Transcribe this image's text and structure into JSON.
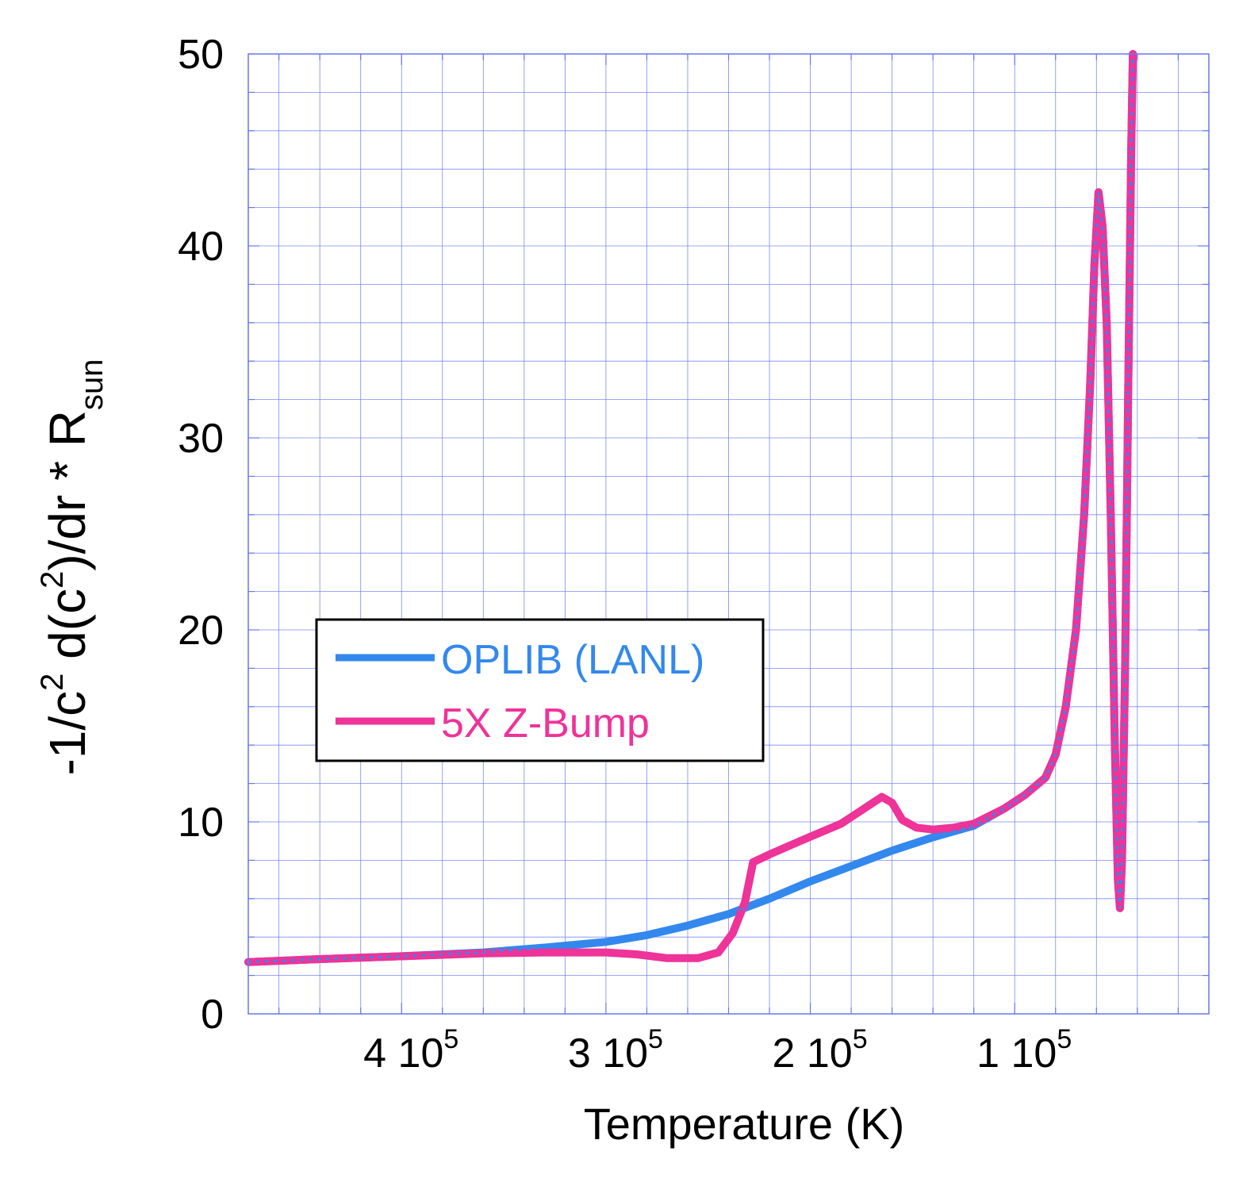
{
  "colors": {
    "oplib": "#3388ee",
    "zbump": "#ee3399",
    "grid": "#6677ee",
    "text": "#000000",
    "legend_border": "#000000"
  },
  "chart_data": {
    "type": "line",
    "title": "",
    "xlabel": "Temperature (K)",
    "ylabel_main": "-1/c",
    "ylabel_sup1": "2",
    "ylabel_mid": " d(c",
    "ylabel_sup2": "2",
    "ylabel_end": ")/dr * R",
    "ylabel_sub": "sun",
    "x_reversed": true,
    "xlim": [
      475000,
      5000
    ],
    "ylim": [
      0,
      50
    ],
    "x_ticks": [
      {
        "value": 400000,
        "mantissa": "4 10",
        "exp": "5"
      },
      {
        "value": 300000,
        "mantissa": "3 10",
        "exp": "5"
      },
      {
        "value": 200000,
        "mantissa": "2 10",
        "exp": "5"
      },
      {
        "value": 100000,
        "mantissa": "1 10",
        "exp": "5"
      }
    ],
    "x_minor_step": 20000,
    "y_ticks": [
      {
        "value": 0,
        "label": "0"
      },
      {
        "value": 10,
        "label": "10"
      },
      {
        "value": 20,
        "label": "20"
      },
      {
        "value": 30,
        "label": "30"
      },
      {
        "value": 40,
        "label": "40"
      },
      {
        "value": 50,
        "label": "50"
      }
    ],
    "y_grid_step": 2,
    "grid": true,
    "legend": {
      "placement": "center-left",
      "entries": [
        {
          "label": "OPLIB (LANL)",
          "series": 0
        },
        {
          "label": "5X Z-Bump",
          "series": 1
        }
      ]
    },
    "series": [
      {
        "name": "OPLIB (LANL)",
        "color_key": "oplib",
        "points": [
          [
            475000,
            2.7
          ],
          [
            440000,
            2.85
          ],
          [
            400000,
            3.0
          ],
          [
            360000,
            3.2
          ],
          [
            330000,
            3.45
          ],
          [
            300000,
            3.75
          ],
          [
            280000,
            4.1
          ],
          [
            260000,
            4.6
          ],
          [
            240000,
            5.2
          ],
          [
            220000,
            6.0
          ],
          [
            200000,
            6.9
          ],
          [
            180000,
            7.7
          ],
          [
            160000,
            8.5
          ],
          [
            140000,
            9.2
          ],
          [
            120000,
            9.8
          ],
          [
            105000,
            10.7
          ],
          [
            95000,
            11.4
          ],
          [
            85000,
            12.3
          ],
          [
            80000,
            13.5
          ],
          [
            75000,
            16.0
          ],
          [
            70000,
            20.0
          ],
          [
            66000,
            26.0
          ],
          [
            63000,
            33.0
          ],
          [
            61000,
            39.0
          ],
          [
            59000,
            42.8
          ],
          [
            57000,
            41.0
          ],
          [
            55000,
            36.0
          ],
          [
            53000,
            26.0
          ],
          [
            51000,
            14.0
          ],
          [
            49500,
            7.0
          ],
          [
            48500,
            5.5
          ],
          [
            47500,
            8.0
          ],
          [
            46000,
            18.0
          ],
          [
            44500,
            32.0
          ],
          [
            43000,
            45.0
          ],
          [
            42200,
            50.0
          ]
        ]
      },
      {
        "name": "5X Z-Bump",
        "color_key": "zbump",
        "points": [
          [
            475000,
            2.7
          ],
          [
            440000,
            2.85
          ],
          [
            400000,
            3.0
          ],
          [
            360000,
            3.15
          ],
          [
            330000,
            3.2
          ],
          [
            300000,
            3.2
          ],
          [
            285000,
            3.1
          ],
          [
            270000,
            2.9
          ],
          [
            255000,
            2.9
          ],
          [
            245000,
            3.2
          ],
          [
            238000,
            4.2
          ],
          [
            232000,
            5.8
          ],
          [
            228000,
            7.9
          ],
          [
            220000,
            8.3
          ],
          [
            205000,
            9.0
          ],
          [
            185000,
            9.9
          ],
          [
            175000,
            10.6
          ],
          [
            165000,
            11.3
          ],
          [
            160000,
            11.0
          ],
          [
            155000,
            10.1
          ],
          [
            148000,
            9.7
          ],
          [
            140000,
            9.6
          ],
          [
            130000,
            9.7
          ],
          [
            120000,
            9.9
          ],
          [
            105000,
            10.7
          ],
          [
            95000,
            11.4
          ],
          [
            85000,
            12.3
          ],
          [
            80000,
            13.5
          ],
          [
            75000,
            16.0
          ],
          [
            70000,
            20.0
          ],
          [
            66000,
            26.0
          ],
          [
            63000,
            33.0
          ],
          [
            61000,
            39.0
          ],
          [
            59000,
            42.8
          ],
          [
            57000,
            41.0
          ],
          [
            55000,
            36.0
          ],
          [
            53000,
            26.0
          ],
          [
            51000,
            14.0
          ],
          [
            49500,
            7.0
          ],
          [
            48500,
            5.5
          ],
          [
            47500,
            8.0
          ],
          [
            46000,
            18.0
          ],
          [
            44500,
            32.0
          ],
          [
            43000,
            45.0
          ],
          [
            42200,
            50.0
          ]
        ]
      }
    ]
  }
}
